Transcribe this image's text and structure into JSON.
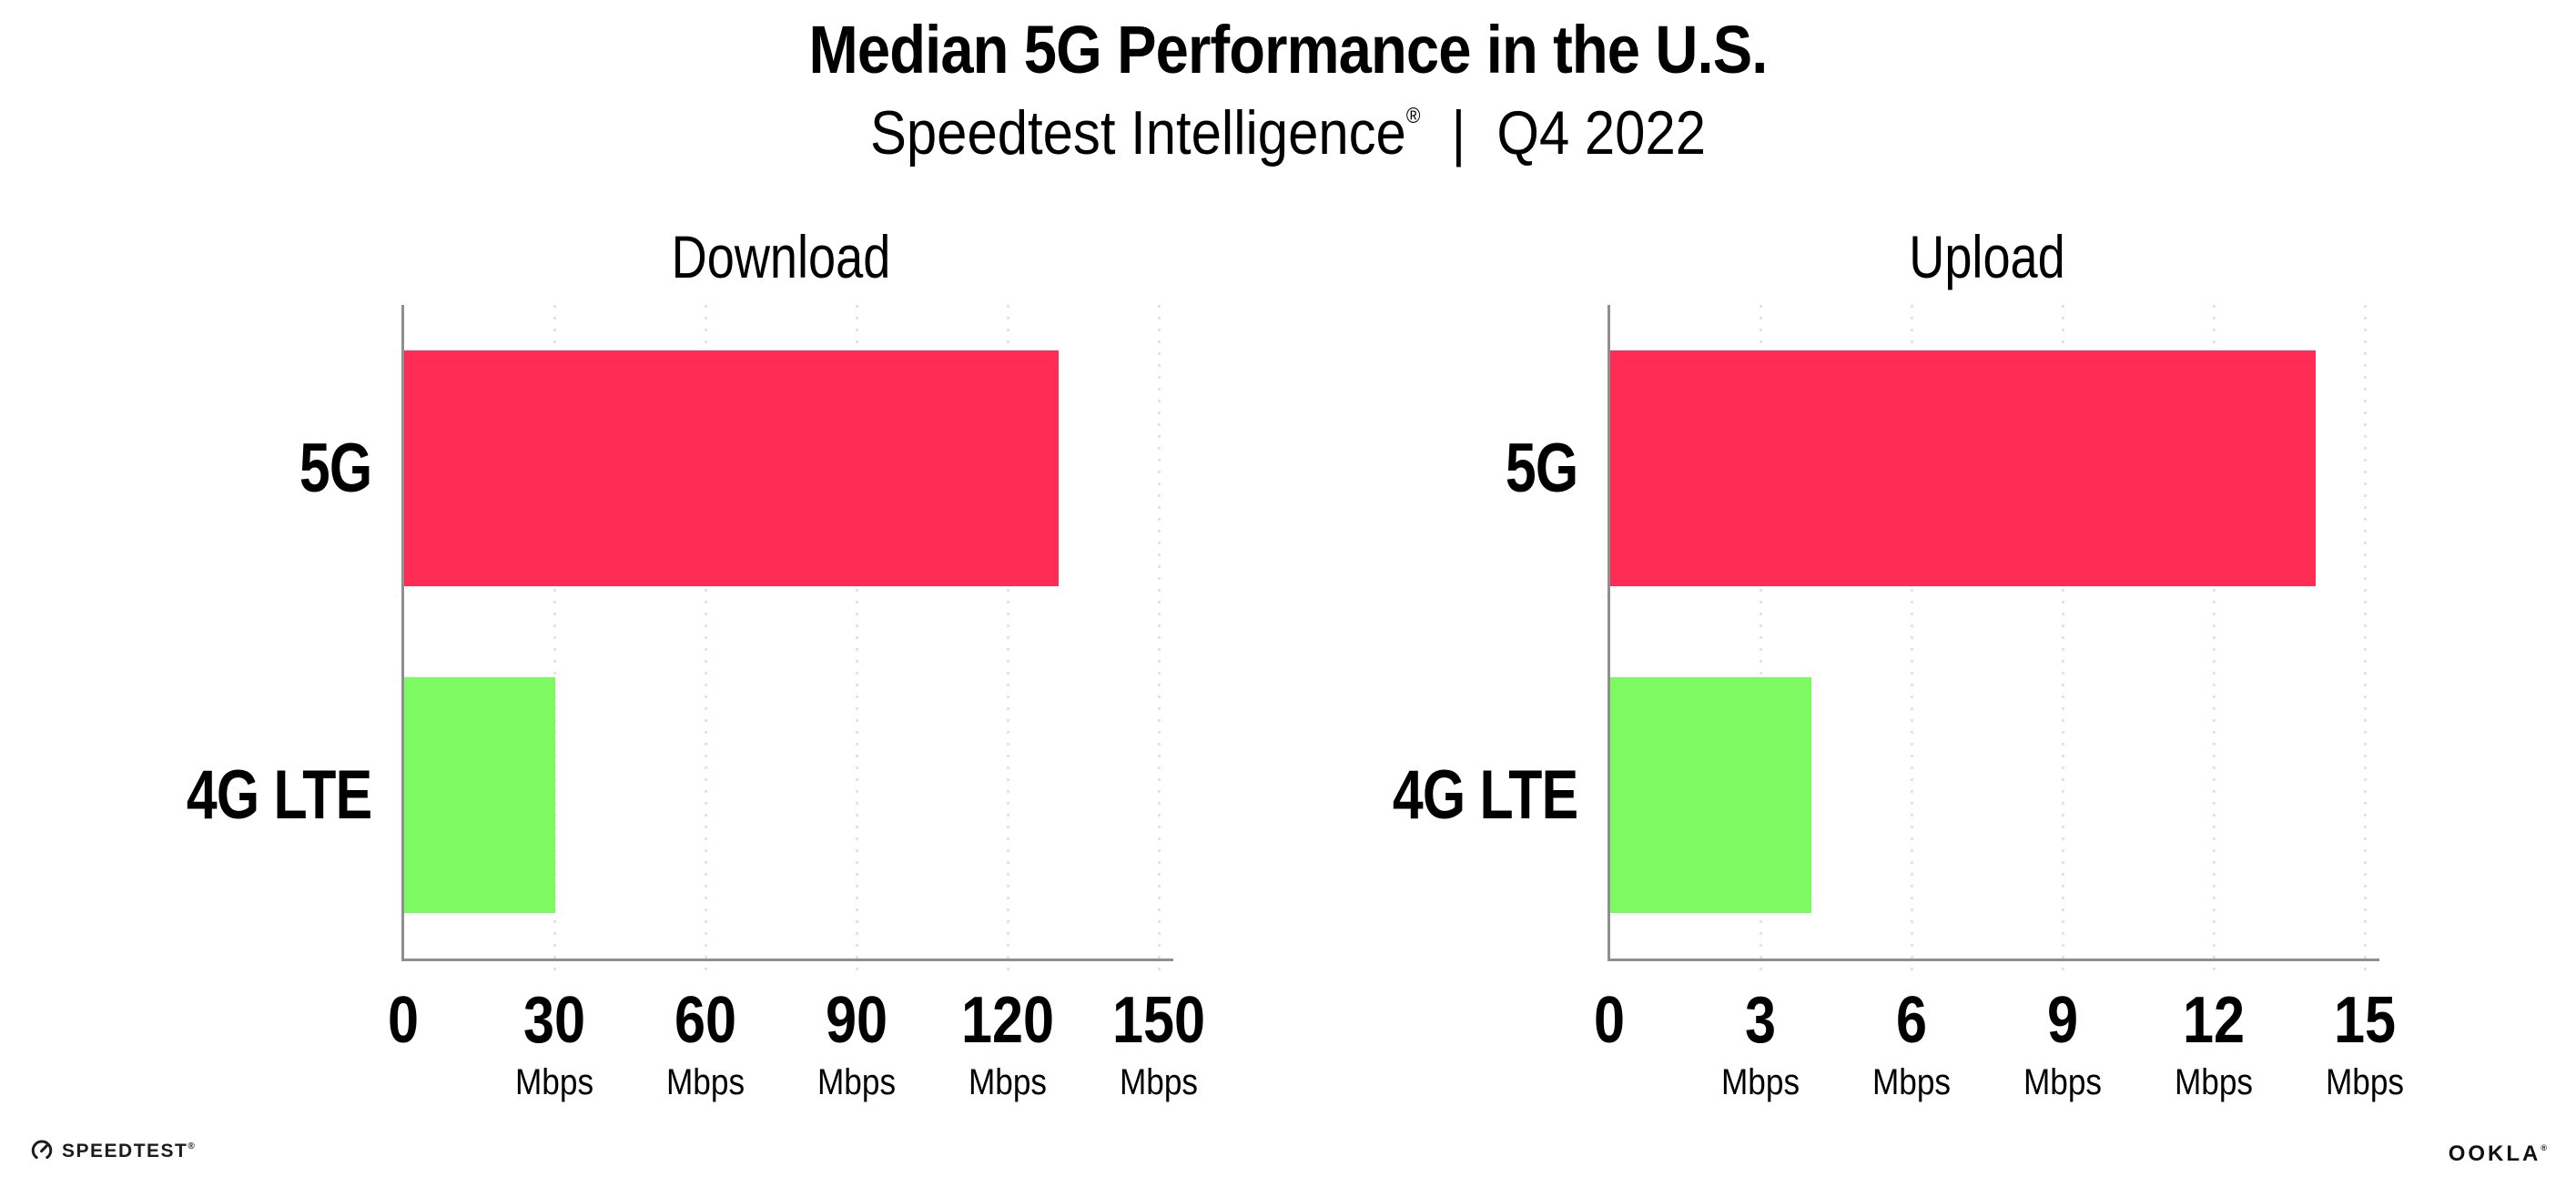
{
  "header": {
    "title": "Median 5G Performance in the U.S.",
    "subtitle": {
      "brand": "Speedtest Intelligence",
      "reg": "®",
      "separator": "|",
      "period": "Q4 2022"
    }
  },
  "chart_data": [
    {
      "type": "bar",
      "orientation": "horizontal",
      "title": "Download",
      "categories": [
        "5G",
        "4G LTE"
      ],
      "values": [
        130,
        30
      ],
      "unit": "Mbps",
      "xlim": [
        0,
        150
      ],
      "xticks": [
        0,
        30,
        60,
        90,
        120,
        150
      ],
      "grid": "vertical-dotted",
      "legend": "none",
      "bar_colors": [
        "#ff2d55",
        "#7dfa62"
      ]
    },
    {
      "type": "bar",
      "orientation": "horizontal",
      "title": "Upload",
      "categories": [
        "5G",
        "4G LTE"
      ],
      "values": [
        14,
        4
      ],
      "unit": "Mbps",
      "xlim": [
        0,
        15
      ],
      "xticks": [
        0,
        3,
        6,
        9,
        12,
        15
      ],
      "grid": "vertical-dotted",
      "legend": "none",
      "bar_colors": [
        "#ff2d55",
        "#7dfa62"
      ]
    }
  ],
  "footer": {
    "speedtest": "SPEEDTEST",
    "speedtest_reg": "®",
    "ookla": "OOKLA",
    "ookla_reg": "®"
  },
  "colors": {
    "bar_5g": "#ff2d55",
    "bar_4g_lte": "#7dfa62",
    "axis_line": "#8f8f8f",
    "gridline_dot": "#e2e2ec",
    "text": "#000000"
  }
}
